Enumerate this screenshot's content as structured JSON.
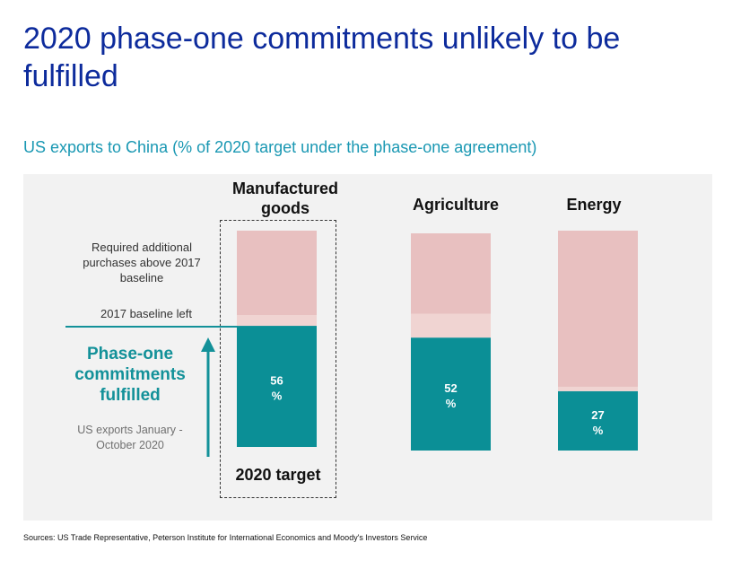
{
  "title": "2020 phase-one commitments unlikely to be fulfilled",
  "subtitle": "US exports to China (% of 2020 target under the phase-one agreement)",
  "annotations": {
    "required": "Required additional purchases above 2017 baseline",
    "baseline_left": "2017 baseline left",
    "phase_one": "Phase-one commitments fulfilled",
    "us_exports": "US exports January - October 2020",
    "target": "2020 target"
  },
  "source": "Sources: US Trade Representative, Peterson Institute for International Economics and Moody's Investors Service",
  "colors": {
    "fulfilled": "#0b8f96",
    "baseline_left": "#f0d4d2",
    "required_additional": "#e8c0c0",
    "title": "#0d2b9c",
    "subtitle": "#1a98b3",
    "panel": "#f2f2f2"
  },
  "chart_data": {
    "type": "bar",
    "stacked": true,
    "categories": [
      "Manufactured goods",
      "Agriculture",
      "Energy"
    ],
    "ylim": [
      0,
      100
    ],
    "series": [
      {
        "key": "fulfilled",
        "values": [
          56,
          52,
          27
        ],
        "labels": [
          "56\n%",
          "52\n%",
          "27\n%"
        ]
      },
      {
        "key": "baseline_left",
        "values": [
          5,
          11,
          2
        ]
      },
      {
        "key": "required_additional",
        "values": [
          39,
          37,
          71
        ]
      }
    ],
    "title": "",
    "xlabel": "",
    "ylabel": "",
    "grid": false
  }
}
